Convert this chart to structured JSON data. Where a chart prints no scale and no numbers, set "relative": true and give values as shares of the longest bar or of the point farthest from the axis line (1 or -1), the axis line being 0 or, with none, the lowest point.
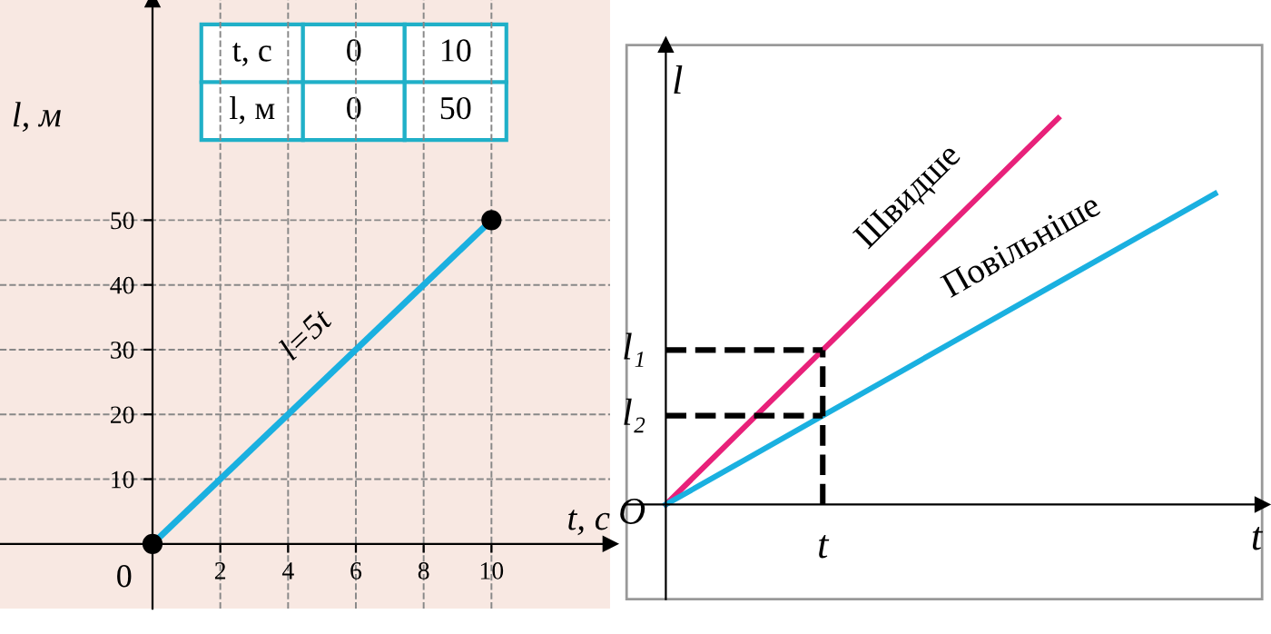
{
  "chart_data": [
    {
      "type": "line",
      "xlabel": "t, с",
      "ylabel": "l, м",
      "x": [
        0,
        10
      ],
      "values": [
        0,
        50
      ],
      "color": "#1ab0e0",
      "marker": "circle",
      "line_style": "solid",
      "xlim": [
        -4.5,
        13.5
      ],
      "ylim": [
        -10,
        84
      ],
      "xticks": [
        2,
        4,
        6,
        8,
        10
      ],
      "yticks": [
        10,
        20,
        30,
        40,
        50
      ],
      "grid": true,
      "annotations": [
        {
          "text": "0",
          "x": 0,
          "y": 0
        },
        {
          "text": "l=5t",
          "x": 5,
          "y": 25
        },
        "t, с",
        "0",
        "10",
        "l, м",
        "0",
        "50"
      ]
    },
    {
      "type": "line",
      "relative": true,
      "xlabel": "t",
      "ylabel": "l",
      "grid": false,
      "categories": [
        null,
        null,
        null,
        null,
        null,
        null,
        null,
        null
      ],
      "series": [
        {
          "name": "Швидше",
          "color": "#e8217a",
          "values": [
            0,
            0.2,
            0.4,
            0.6,
            0.8,
            1.0,
            null,
            null
          ]
        },
        {
          "name": "Повільніше",
          "color": "#1ab0e0",
          "values": [
            0,
            0.115,
            0.23,
            0.345,
            0.46,
            0.575,
            0.69,
            0.805
          ]
        },
        {
          "name": "l₁",
          "color": "#000000",
          "line_style": "dashed",
          "values": [
            0.4,
            0.4,
            0.4,
            null,
            null,
            null,
            null,
            null
          ]
        },
        {
          "name": "l₂",
          "color": "#000000",
          "line_style": "dashed",
          "values": [
            0.23,
            0.23,
            0.23,
            null,
            null,
            null,
            null,
            null
          ]
        }
      ],
      "annotations": [
        "O",
        "t"
      ]
    }
  ]
}
